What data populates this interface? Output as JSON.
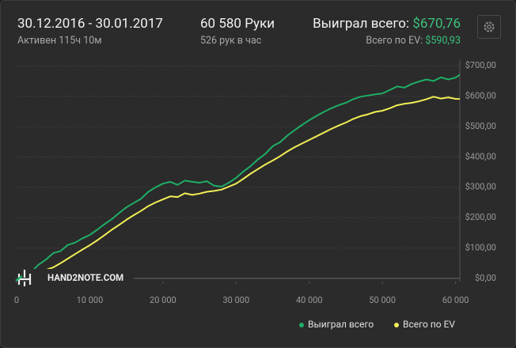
{
  "header": {
    "date_range": "30.12.2016 - 30.01.2017",
    "active": "Активен 115ч 10м",
    "hands": "60 580 Руки",
    "hands_per_hour": "526 рук в час",
    "won_label": "Выиграл всего:",
    "won_value": "$670,76",
    "ev_label": "Всего по EV:",
    "ev_value": "$590,93"
  },
  "watermark": "HAND2NOTE.COM",
  "chart_data": {
    "type": "line",
    "x": [
      0,
      1000,
      2000,
      3000,
      4000,
      5000,
      6000,
      7000,
      8000,
      9000,
      10000,
      11000,
      12000,
      13000,
      14000,
      15000,
      16000,
      17000,
      18000,
      19000,
      20000,
      21000,
      22000,
      23000,
      24000,
      25000,
      26000,
      27000,
      28000,
      29000,
      30000,
      31000,
      32000,
      33000,
      34000,
      35000,
      36000,
      37000,
      38000,
      39000,
      40000,
      41000,
      42000,
      43000,
      44000,
      45000,
      46000,
      47000,
      48000,
      49000,
      50000,
      51000,
      52000,
      53000,
      54000,
      55000,
      56000,
      57000,
      58000,
      59000,
      60000,
      60580
    ],
    "series": [
      {
        "name": "Выиграл всего",
        "color": "#1fae67",
        "values": [
          0,
          14,
          22,
          45,
          62,
          83,
          90,
          110,
          118,
          132,
          143,
          160,
          178,
          195,
          215,
          234,
          248,
          262,
          285,
          300,
          312,
          318,
          308,
          322,
          318,
          315,
          320,
          305,
          302,
          315,
          331,
          352,
          370,
          392,
          410,
          435,
          448,
          470,
          488,
          505,
          521,
          535,
          548,
          560,
          570,
          578,
          590,
          598,
          602,
          606,
          609,
          620,
          632,
          628,
          640,
          648,
          655,
          650,
          662,
          655,
          661,
          670.76
        ]
      },
      {
        "name": "Всего по EV",
        "color": "#f2ee55",
        "values": [
          0,
          6,
          12,
          20,
          28,
          36,
          50,
          65,
          80,
          95,
          109,
          125,
          142,
          160,
          176,
          193,
          208,
          222,
          238,
          250,
          260,
          270,
          268,
          280,
          275,
          279,
          285,
          288,
          292,
          302,
          312,
          328,
          345,
          360,
          375,
          388,
          402,
          418,
          432,
          444,
          456,
          468,
          480,
          492,
          503,
          513,
          525,
          534,
          540,
          548,
          552,
          560,
          570,
          575,
          578,
          583,
          590,
          598,
          592,
          596,
          591,
          590.93
        ]
      }
    ],
    "xlim": [
      0,
      60580
    ],
    "ylim": [
      -10,
      720
    ],
    "xticks": [
      0,
      {
        "value": 10000,
        "label": "10 000"
      },
      {
        "value": 20000,
        "label": "20 000"
      },
      {
        "value": 30000,
        "label": "30 000"
      },
      {
        "value": 40000,
        "label": "40 000"
      },
      {
        "value": 50000,
        "label": "50 000"
      },
      {
        "value": 60000,
        "label": "60 000"
      }
    ],
    "yticks": [
      {
        "value": 0,
        "label": "$0,00"
      },
      {
        "value": 100,
        "label": "$100,00"
      },
      {
        "value": 200,
        "label": "$200,00"
      },
      {
        "value": 300,
        "label": "$300,00"
      },
      {
        "value": 400,
        "label": "$400,00"
      },
      {
        "value": 500,
        "label": "$500,00"
      },
      {
        "value": 600,
        "label": "$600,00"
      },
      {
        "value": 700,
        "label": "$700,00"
      }
    ],
    "grid": true
  }
}
